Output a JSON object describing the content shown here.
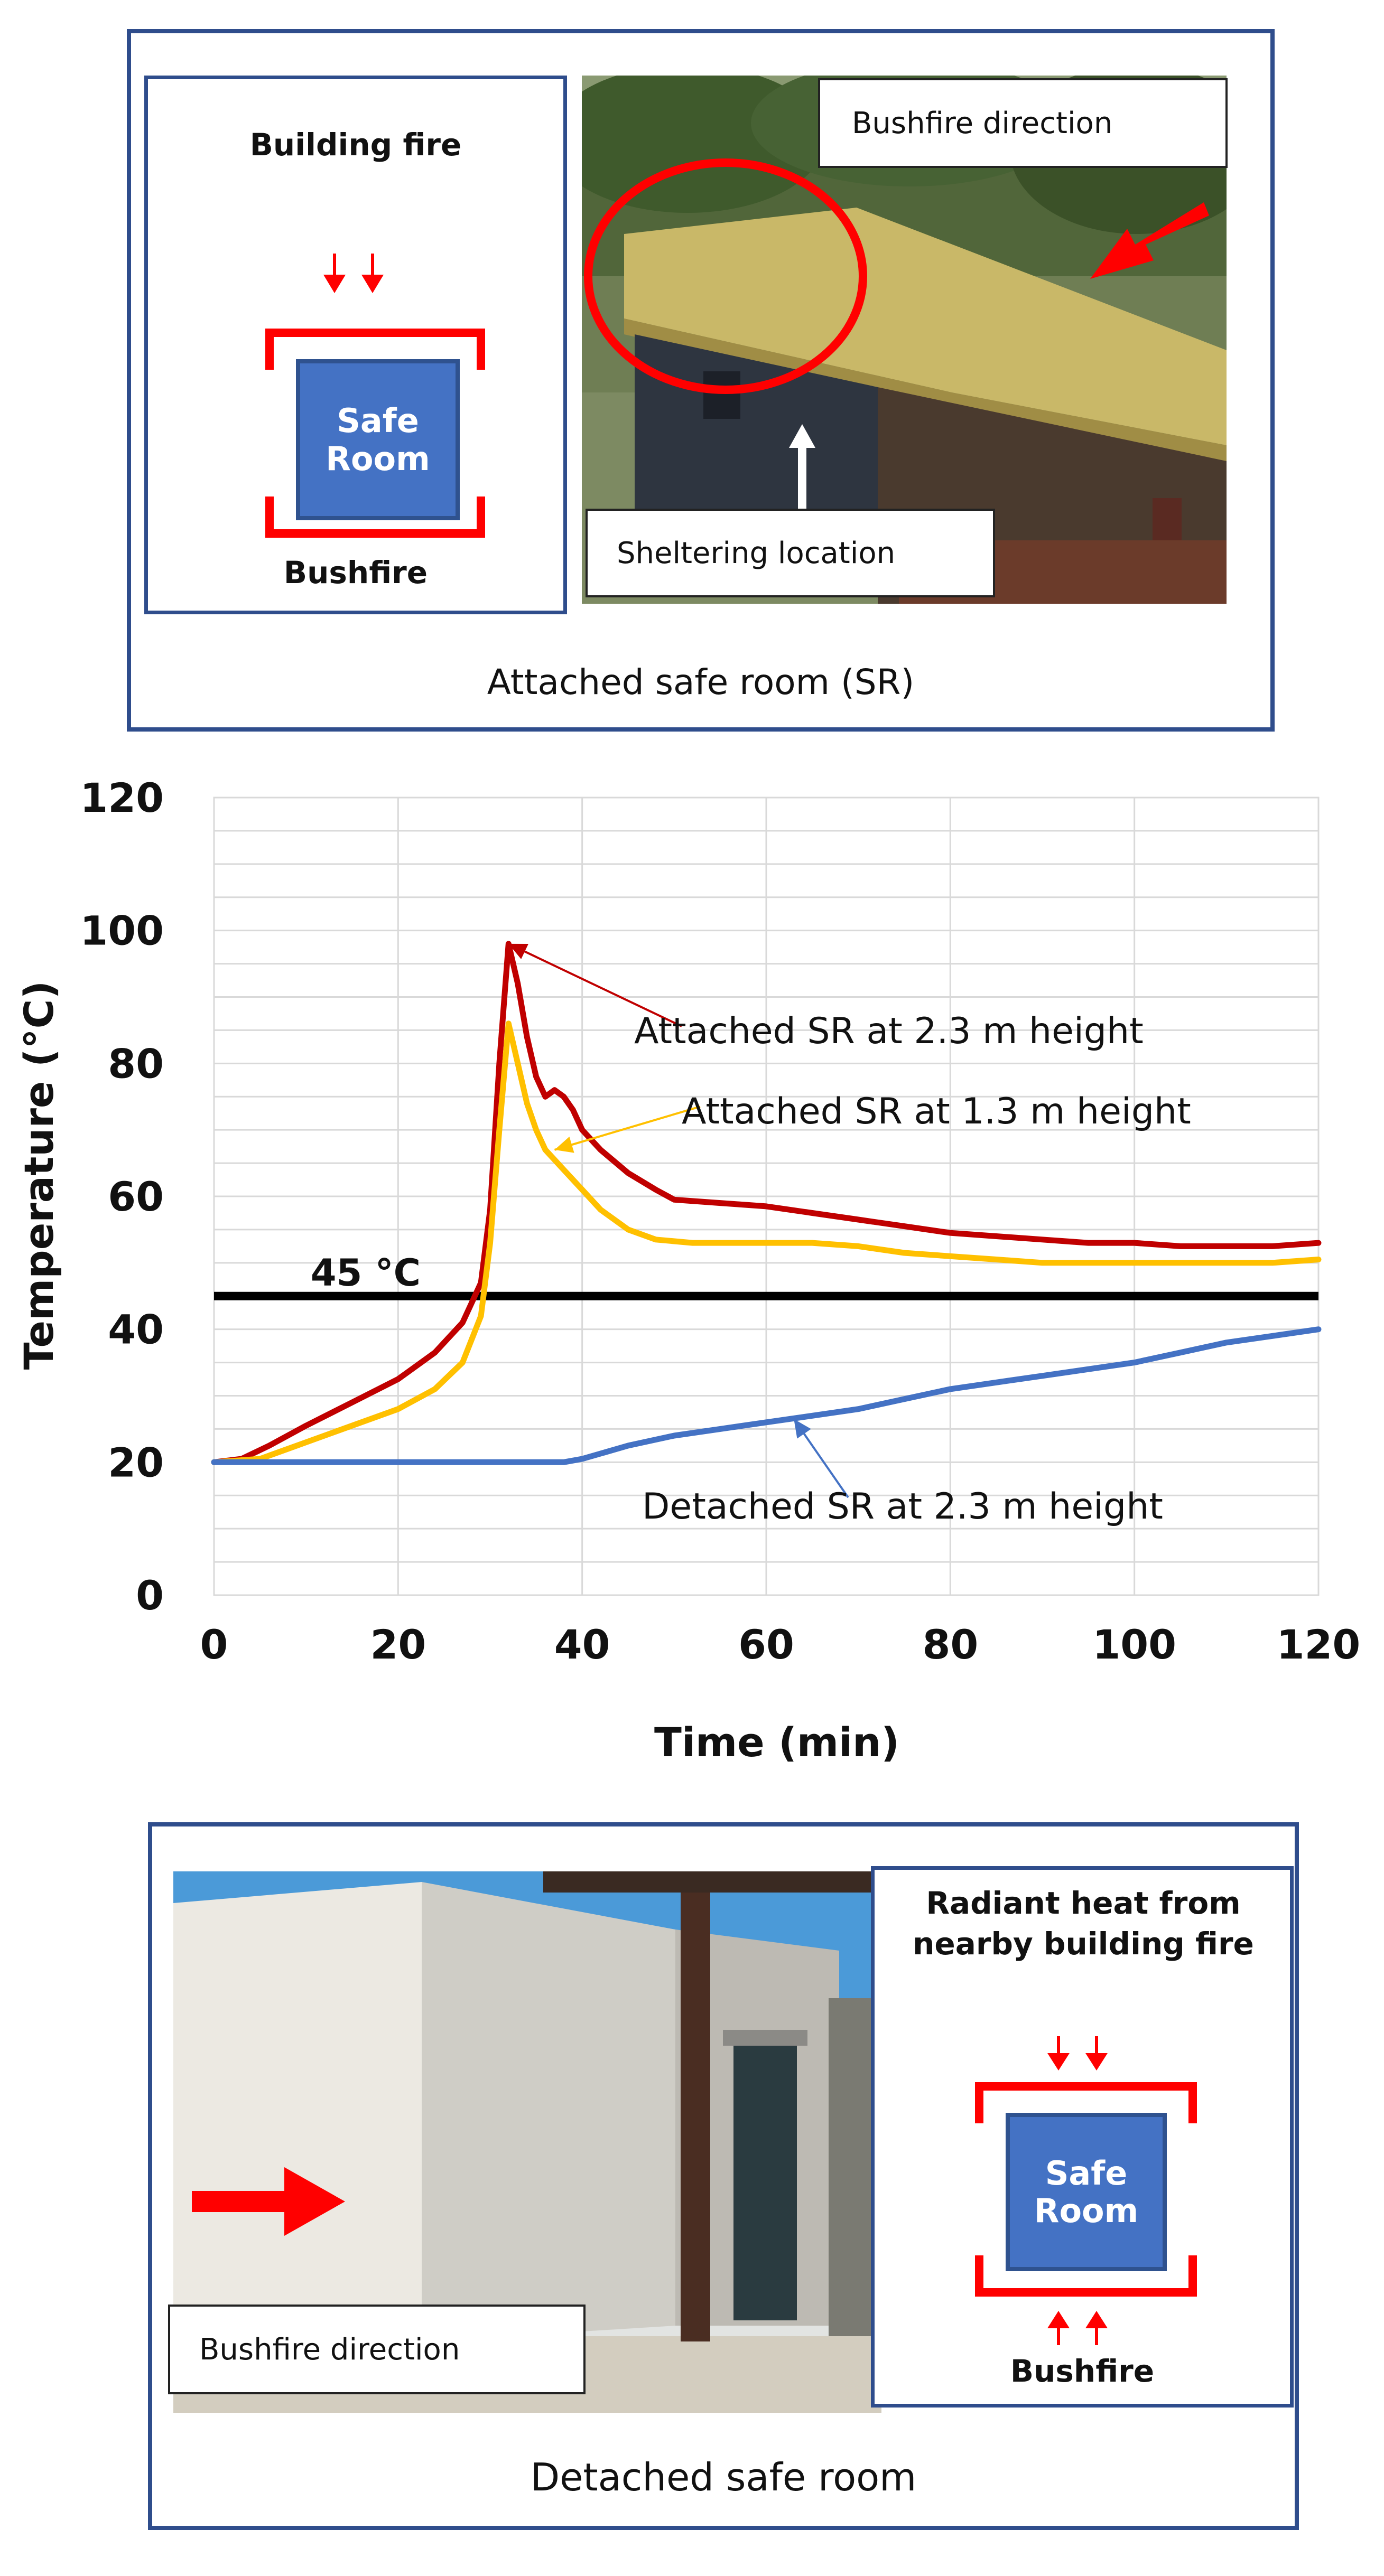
{
  "top_panel": {
    "diagram_title": "Building fire",
    "diagram_bottom_label": "Bushfire",
    "safe_room_line1": "Safe",
    "safe_room_line2": "Room",
    "photo_label_direction": "Bushfire direction",
    "photo_label_shelter": "Sheltering location",
    "caption": "Attached safe room (SR)"
  },
  "bottom_panel": {
    "photo_label_direction": "Bushfire direction",
    "diagram_title": "Radiant heat from nearby building fire",
    "diagram_bottom_label": "Bushfire",
    "safe_room_line1": "Safe",
    "safe_room_line2": "Room",
    "caption": "Detached safe room"
  },
  "chart_data": {
    "type": "line",
    "title": "",
    "xlabel": "Time (min)",
    "ylabel": "Temperature (°C)",
    "xlim": [
      0,
      120
    ],
    "ylim": [
      0,
      120
    ],
    "xticks": [
      0,
      20,
      40,
      60,
      80,
      100,
      120
    ],
    "yticks": [
      0,
      20,
      40,
      60,
      80,
      100,
      120
    ],
    "grid": true,
    "threshold": {
      "value": 45,
      "label": "45 °C",
      "color": "#000000"
    },
    "series": [
      {
        "name": "Attached SR at 2.3 m height",
        "color": "#c00000",
        "points": [
          [
            0,
            20
          ],
          [
            3,
            20.5
          ],
          [
            6,
            22.5
          ],
          [
            10,
            25.5
          ],
          [
            15,
            29
          ],
          [
            20,
            32.5
          ],
          [
            24,
            36.5
          ],
          [
            27,
            41
          ],
          [
            29,
            47
          ],
          [
            30,
            58
          ],
          [
            31,
            80
          ],
          [
            32,
            98
          ],
          [
            33,
            92
          ],
          [
            34,
            84
          ],
          [
            35,
            78
          ],
          [
            36,
            75
          ],
          [
            37,
            76
          ],
          [
            38,
            75
          ],
          [
            39,
            73
          ],
          [
            40,
            70
          ],
          [
            42,
            67
          ],
          [
            45,
            63.5
          ],
          [
            48,
            61
          ],
          [
            50,
            59.5
          ],
          [
            55,
            59
          ],
          [
            60,
            58.5
          ],
          [
            65,
            57.5
          ],
          [
            70,
            56.5
          ],
          [
            75,
            55.5
          ],
          [
            80,
            54.5
          ],
          [
            85,
            54
          ],
          [
            90,
            53.5
          ],
          [
            95,
            53
          ],
          [
            100,
            53
          ],
          [
            105,
            52.5
          ],
          [
            110,
            52.5
          ],
          [
            115,
            52.5
          ],
          [
            120,
            53
          ]
        ]
      },
      {
        "name": "Attached SR at 1.3 m height",
        "color": "#ffc000",
        "points": [
          [
            0,
            20
          ],
          [
            5,
            20.5
          ],
          [
            8,
            22
          ],
          [
            12,
            24
          ],
          [
            16,
            26
          ],
          [
            20,
            28
          ],
          [
            24,
            31
          ],
          [
            27,
            35
          ],
          [
            29,
            42
          ],
          [
            30,
            53
          ],
          [
            31,
            70
          ],
          [
            32,
            86
          ],
          [
            33,
            80
          ],
          [
            34,
            74
          ],
          [
            35,
            70
          ],
          [
            36,
            67
          ],
          [
            38,
            64
          ],
          [
            40,
            61
          ],
          [
            42,
            58
          ],
          [
            45,
            55
          ],
          [
            48,
            53.5
          ],
          [
            52,
            53
          ],
          [
            58,
            53
          ],
          [
            65,
            53
          ],
          [
            70,
            52.5
          ],
          [
            75,
            51.5
          ],
          [
            80,
            51
          ],
          [
            85,
            50.5
          ],
          [
            90,
            50
          ],
          [
            95,
            50
          ],
          [
            100,
            50
          ],
          [
            105,
            50
          ],
          [
            110,
            50
          ],
          [
            115,
            50
          ],
          [
            120,
            50.5
          ]
        ]
      },
      {
        "name": "Detached SR at 2.3 m height",
        "color": "#4472c4",
        "points": [
          [
            0,
            20
          ],
          [
            10,
            20
          ],
          [
            20,
            20
          ],
          [
            30,
            20
          ],
          [
            38,
            20
          ],
          [
            40,
            20.5
          ],
          [
            45,
            22.5
          ],
          [
            50,
            24
          ],
          [
            55,
            25
          ],
          [
            60,
            26
          ],
          [
            65,
            27
          ],
          [
            70,
            28
          ],
          [
            75,
            29.5
          ],
          [
            80,
            31
          ],
          [
            85,
            32
          ],
          [
            90,
            33
          ],
          [
            95,
            34
          ],
          [
            100,
            35
          ],
          [
            105,
            36.5
          ],
          [
            110,
            38
          ],
          [
            115,
            39
          ],
          [
            120,
            40
          ]
        ]
      }
    ],
    "annotations": [
      {
        "text": "Attached SR at 2.3 m height",
        "color": "#c00000",
        "points_to": [
          32,
          98
        ]
      },
      {
        "text": "Attached SR at 1.3 m height",
        "color": "#ffc000",
        "points_to": [
          37,
          67
        ]
      },
      {
        "text": "Detached SR at 2.3 m height",
        "color": "#4472c4",
        "points_to": [
          63,
          26.5
        ]
      }
    ]
  }
}
